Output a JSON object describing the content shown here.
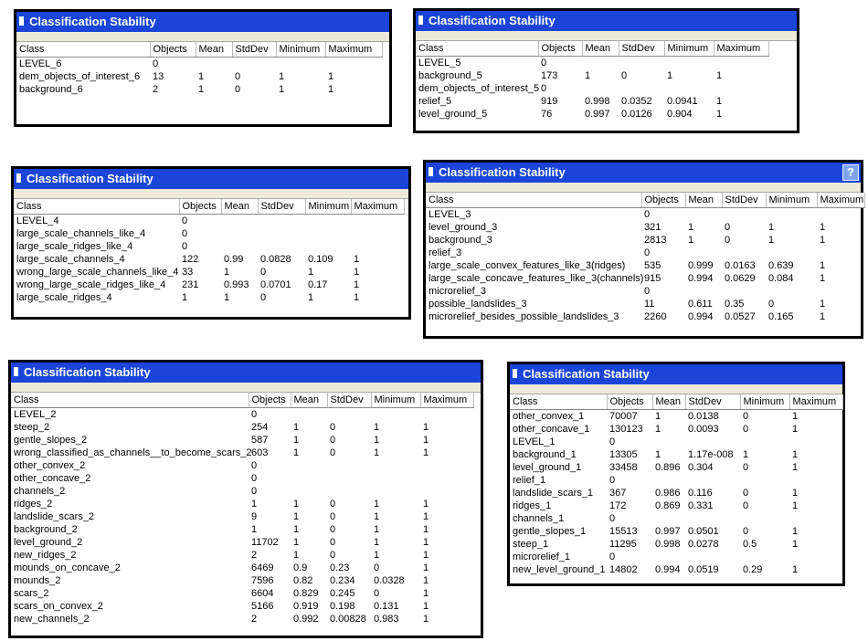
{
  "window_title": "Classification Stability",
  "columns": [
    "Class",
    "Objects",
    "Mean",
    "StdDev",
    "Minimum",
    "Maximum"
  ],
  "help_label": "?",
  "panels": [
    {
      "rows": [
        [
          "LEVEL_6",
          "0",
          "",
          "",
          "",
          ""
        ],
        [
          "dem_objects_of_interest_6",
          "13",
          "1",
          "0",
          "1",
          "1"
        ],
        [
          "background_6",
          "2",
          "1",
          "0",
          "1",
          "1"
        ]
      ]
    },
    {
      "rows": [
        [
          "LEVEL_5",
          "0",
          "",
          "",
          "",
          ""
        ],
        [
          "background_5",
          "173",
          "1",
          "0",
          "1",
          "1"
        ],
        [
          "dem_objects_of_interest_5",
          "0",
          "",
          "",
          "",
          ""
        ],
        [
          "relief_5",
          "919",
          "0.998",
          "0.0352",
          "0.0941",
          "1"
        ],
        [
          "level_ground_5",
          "76",
          "0.997",
          "0.0126",
          "0.904",
          "1"
        ]
      ]
    },
    {
      "rows": [
        [
          "LEVEL_4",
          "0",
          "",
          "",
          "",
          ""
        ],
        [
          "large_scale_channels_like_4",
          "0",
          "",
          "",
          "",
          ""
        ],
        [
          "large_scale_ridges_like_4",
          "0",
          "",
          "",
          "",
          ""
        ],
        [
          "large_scale_channels_4",
          "122",
          "0.99",
          "0.0828",
          "0.109",
          "1"
        ],
        [
          "wrong_large_scale_channels_like_4",
          "33",
          "1",
          "0",
          "1",
          "1"
        ],
        [
          "wrong_large_scale_ridges_like_4",
          "231",
          "0.993",
          "0.0701",
          "0.17",
          "1"
        ],
        [
          "large_scale_ridges_4",
          "1",
          "1",
          "0",
          "1",
          "1"
        ]
      ]
    },
    {
      "rows": [
        [
          "LEVEL_3",
          "0",
          "",
          "",
          "",
          ""
        ],
        [
          "level_ground_3",
          "321",
          "1",
          "0",
          "1",
          "1"
        ],
        [
          "background_3",
          "2813",
          "1",
          "0",
          "1",
          "1"
        ],
        [
          "relief_3",
          "0",
          "",
          "",
          "",
          ""
        ],
        [
          "large_scale_convex_features_like_3(ridges)",
          "535",
          "0.999",
          "0.0163",
          "0.639",
          "1"
        ],
        [
          "large_scale_concave_features_like_3(channels)",
          "915",
          "0.994",
          "0.0629",
          "0.084",
          "1"
        ],
        [
          "microrelief_3",
          "0",
          "",
          "",
          "",
          ""
        ],
        [
          "possible_landslides_3",
          "11",
          "0.611",
          "0.35",
          "0",
          "1"
        ],
        [
          "microrelief_besides_possible_landslides_3",
          "2260",
          "0.994",
          "0.0527",
          "0.165",
          "1"
        ]
      ]
    },
    {
      "rows": [
        [
          "LEVEL_2",
          "0",
          "",
          "",
          "",
          ""
        ],
        [
          "steep_2",
          "254",
          "1",
          "0",
          "1",
          "1"
        ],
        [
          "gentle_slopes_2",
          "587",
          "1",
          "0",
          "1",
          "1"
        ],
        [
          "wrong_classified_as_channels__to_become_scars_2",
          "603",
          "1",
          "0",
          "1",
          "1"
        ],
        [
          "other_convex_2",
          "0",
          "",
          "",
          "",
          ""
        ],
        [
          "other_concave_2",
          "0",
          "",
          "",
          "",
          ""
        ],
        [
          "channels_2",
          "0",
          "",
          "",
          "",
          ""
        ],
        [
          "ridges_2",
          "1",
          "1",
          "0",
          "1",
          "1"
        ],
        [
          "landslide_scars_2",
          "9",
          "1",
          "0",
          "1",
          "1"
        ],
        [
          "background_2",
          "1",
          "1",
          "0",
          "1",
          "1"
        ],
        [
          "level_ground_2",
          "11702",
          "1",
          "0",
          "1",
          "1"
        ],
        [
          "new_ridges_2",
          "2",
          "1",
          "0",
          "1",
          "1"
        ],
        [
          "mounds_on_concave_2",
          "6469",
          "0.9",
          "0.23",
          "0",
          "1"
        ],
        [
          "mounds_2",
          "7596",
          "0.82",
          "0.234",
          "0.0328",
          "1"
        ],
        [
          "scars_2",
          "6604",
          "0.829",
          "0.245",
          "0",
          "1"
        ],
        [
          "scars_on_convex_2",
          "5166",
          "0.919",
          "0.198",
          "0.131",
          "1"
        ],
        [
          "new_channels_2",
          "2",
          "0.992",
          "0.00828",
          "0.983",
          "1"
        ]
      ]
    },
    {
      "rows": [
        [
          "other_convex_1",
          "70007",
          "1",
          "0.0138",
          "0",
          "1"
        ],
        [
          "other_concave_1",
          "130123",
          "1",
          "0.0093",
          "0",
          "1"
        ],
        [
          "LEVEL_1",
          "0",
          "",
          "",
          "",
          ""
        ],
        [
          "background_1",
          "13305",
          "1",
          "1.17e-008",
          "1",
          "1"
        ],
        [
          "level_ground_1",
          "33458",
          "0.896",
          "0.304",
          "0",
          "1"
        ],
        [
          "relief_1",
          "0",
          "",
          "",
          "",
          ""
        ],
        [
          "landslide_scars_1",
          "367",
          "0.986",
          "0.116",
          "0",
          "1"
        ],
        [
          "ridges_1",
          "172",
          "0.869",
          "0.331",
          "0",
          "1"
        ],
        [
          "channels_1",
          "0",
          "",
          "",
          "",
          ""
        ],
        [
          "gentle_slopes_1",
          "15513",
          "0.997",
          "0.0501",
          "0",
          "1"
        ],
        [
          "steep_1",
          "11295",
          "0.998",
          "0.0278",
          "0.5",
          "1"
        ],
        [
          "microrelief_1",
          "0",
          "",
          "",
          "",
          ""
        ],
        [
          "new_level_ground_1",
          "14802",
          "0.994",
          "0.0519",
          "0.29",
          "1"
        ]
      ]
    }
  ]
}
